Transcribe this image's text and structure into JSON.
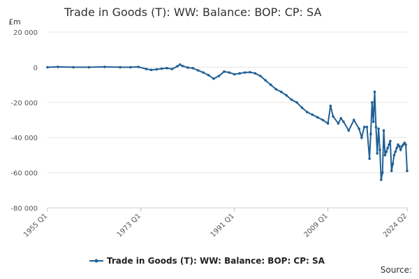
{
  "chart_data": {
    "type": "line",
    "title": "Trade in Goods (T): WW: Balance: BOP: CP: SA",
    "ylabel": "£m",
    "xlabel": "",
    "xlim": [
      1955.0,
      2024.25
    ],
    "ylim": [
      -80000,
      20000
    ],
    "y_ticks": [
      {
        "value": 20000,
        "label": "20 000"
      },
      {
        "value": 0,
        "label": "0"
      },
      {
        "value": -20000,
        "label": "-20 000"
      },
      {
        "value": -40000,
        "label": "-40 000"
      },
      {
        "value": -60000,
        "label": "-60 000"
      },
      {
        "value": -80000,
        "label": "-80 000"
      }
    ],
    "x_ticks": [
      {
        "value": 1955.0,
        "label": "1955 Q1"
      },
      {
        "value": 1973.0,
        "label": "1973 Q1"
      },
      {
        "value": 1991.0,
        "label": "1991 Q1"
      },
      {
        "value": 2009.0,
        "label": "2009 Q1"
      },
      {
        "value": 2024.25,
        "label": "2024 Q2"
      }
    ],
    "grid": true,
    "legend": "bottom",
    "color": "#206095",
    "series": [
      {
        "name": "Trade in Goods (T): WW: Balance: BOP: CP: SA",
        "x": [
          1955.0,
          1957.0,
          1960.0,
          1963.0,
          1966.0,
          1969.0,
          1971.0,
          1972.5,
          1974.0,
          1975.0,
          1976.0,
          1977.0,
          1978.0,
          1979.0,
          1980.0,
          1980.5,
          1981.0,
          1982.0,
          1983.0,
          1984.0,
          1985.0,
          1986.0,
          1987.0,
          1988.0,
          1989.0,
          1990.0,
          1991.0,
          1992.0,
          1993.0,
          1994.0,
          1995.0,
          1996.0,
          1997.0,
          1998.0,
          1999.0,
          2000.0,
          2001.0,
          2002.0,
          2003.0,
          2004.0,
          2005.0,
          2006.0,
          2007.0,
          2008.0,
          2009.0,
          2009.5,
          2010.0,
          2011.0,
          2011.5,
          2012.0,
          2013.0,
          2014.0,
          2015.0,
          2015.5,
          2016.0,
          2016.5,
          2017.0,
          2017.25,
          2017.5,
          2017.75,
          2018.0,
          2018.25,
          2018.5,
          2018.75,
          2019.0,
          2019.25,
          2019.5,
          2019.75,
          2020.0,
          2020.25,
          2020.5,
          2020.75,
          2021.0,
          2021.25,
          2021.5,
          2021.75,
          2022.0,
          2022.25,
          2022.5,
          2022.75,
          2023.0,
          2023.25,
          2023.5,
          2023.75,
          2024.0,
          2024.25
        ],
        "y": [
          0,
          200,
          0,
          0,
          200,
          0,
          0,
          200,
          -1000,
          -1500,
          -1200,
          -800,
          -500,
          -1000,
          500,
          1500,
          700,
          -200,
          -500,
          -1800,
          -3000,
          -4500,
          -6500,
          -5000,
          -2500,
          -3000,
          -4000,
          -3500,
          -3000,
          -2800,
          -3500,
          -5000,
          -7500,
          -10000,
          -12500,
          -14000,
          -16000,
          -18500,
          -20000,
          -23000,
          -25500,
          -27000,
          -28500,
          -30000,
          -32000,
          -22000,
          -28000,
          -32000,
          -29000,
          -31000,
          -36000,
          -30000,
          -35000,
          -40000,
          -34000,
          -34000,
          -52000,
          -38000,
          -20000,
          -31000,
          -14000,
          -34000,
          -49000,
          -35000,
          -47000,
          -64000,
          -60000,
          -36000,
          -50000,
          -48000,
          -46000,
          -44000,
          -42000,
          -59000,
          -55000,
          -50000,
          -48000,
          -46000,
          -44000,
          -45000,
          -47000,
          -45000,
          -44000,
          -43000,
          -44000,
          -59000
        ]
      }
    ]
  },
  "source_label": "Source:"
}
